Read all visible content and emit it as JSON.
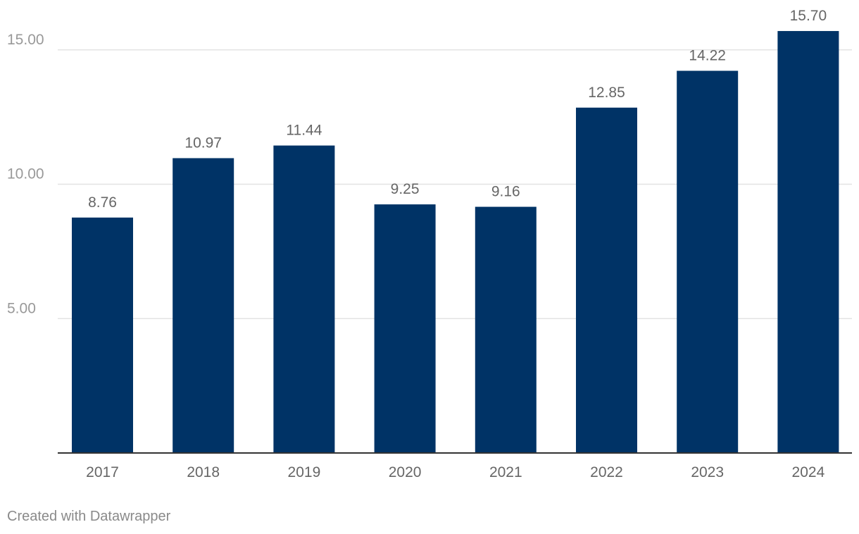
{
  "chart_data": {
    "type": "bar",
    "categories": [
      "2017",
      "2018",
      "2019",
      "2020",
      "2021",
      "2022",
      "2023",
      "2024"
    ],
    "values": [
      8.76,
      10.97,
      11.44,
      9.25,
      9.16,
      12.85,
      14.22,
      15.7
    ],
    "data_labels": [
      "8.76",
      "10.97",
      "11.44",
      "9.25",
      "9.16",
      "12.85",
      "14.22",
      "15.70"
    ],
    "y_ticks": [
      5,
      10,
      15
    ],
    "y_tick_labels": [
      "5.00",
      "10.00",
      "15.00"
    ],
    "ylim": [
      0,
      16.5
    ],
    "grid": true,
    "bar_color": "#003366",
    "grid_color": "#e3e3e3",
    "axis_color": "#333333",
    "label_color": "#666666",
    "tick_label_color": "#999999"
  },
  "footer": {
    "credit": "Created with Datawrapper"
  }
}
